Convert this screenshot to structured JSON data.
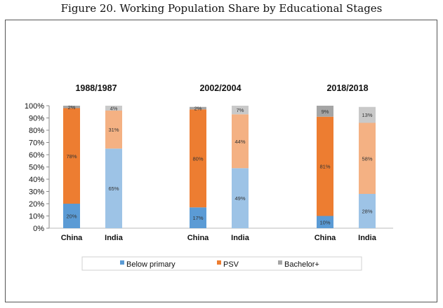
{
  "figure": {
    "title": "Figure 20.  Working Population Share by Educational Stages"
  },
  "chart_data": {
    "type": "bar",
    "stacked": true,
    "ylim": [
      0,
      100
    ],
    "y_ticks": [
      "0%",
      "10%",
      "20%",
      "30%",
      "40%",
      "50%",
      "60%",
      "70%",
      "80%",
      "90%",
      "100%"
    ],
    "groups": [
      {
        "label": "1988/1987",
        "bars": [
          {
            "category": "China",
            "values": [
              20,
              78,
              2
            ],
            "labels": [
              "20%",
              "78%",
              "2%"
            ]
          },
          {
            "category": "India",
            "values": [
              65,
              31,
              4
            ],
            "labels": [
              "65%",
              "31%",
              "4%"
            ]
          }
        ]
      },
      {
        "label": "2002/2004",
        "bars": [
          {
            "category": "China",
            "values": [
              17,
              80,
              2
            ],
            "labels": [
              "17%",
              "80%",
              "2%"
            ]
          },
          {
            "category": "India",
            "values": [
              49,
              44,
              7
            ],
            "labels": [
              "49%",
              "44%",
              "7%"
            ]
          }
        ]
      },
      {
        "label": "2018/2018",
        "bars": [
          {
            "category": "China",
            "values": [
              10,
              81,
              9
            ],
            "labels": [
              "10%",
              "81%",
              "9%"
            ]
          },
          {
            "category": "India",
            "values": [
              28,
              58,
              13
            ],
            "labels": [
              "28%",
              "58%",
              "13%"
            ]
          }
        ]
      }
    ],
    "series": [
      {
        "name": "Below primary",
        "colors": {
          "China": "#5b9bd5",
          "India": "#9dc3e6"
        }
      },
      {
        "name": "PSV",
        "colors": {
          "China": "#ed7d31",
          "India": "#f4b183"
        }
      },
      {
        "name": "Bachelor+",
        "colors": {
          "China": "#a5a5a5",
          "India": "#c9c9c9"
        }
      }
    ],
    "legend_position": "bottom",
    "grid": false
  }
}
